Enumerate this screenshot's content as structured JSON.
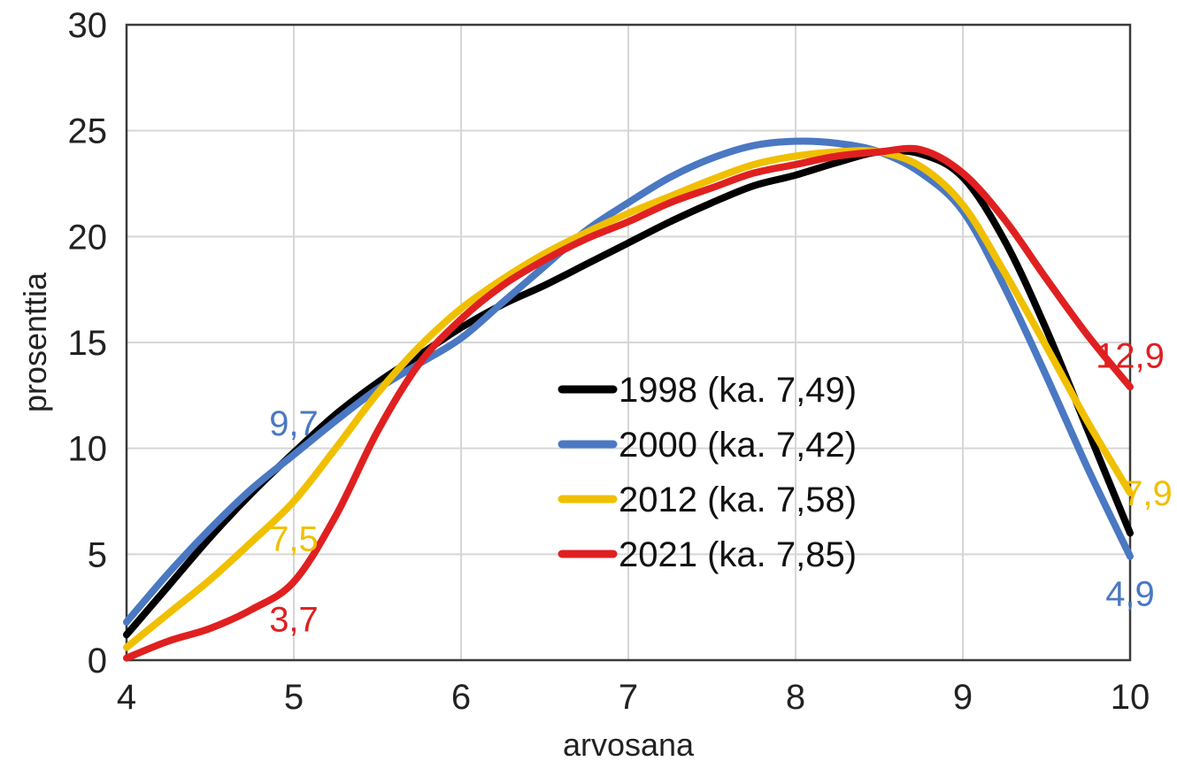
{
  "chart_data": {
    "type": "line",
    "xlabel": "arvosana",
    "ylabel": "prosenttia",
    "xlim": [
      4,
      10
    ],
    "ylim": [
      0,
      30
    ],
    "x_ticks": [
      4,
      5,
      6,
      7,
      8,
      9,
      10
    ],
    "y_ticks": [
      0,
      5,
      10,
      15,
      20,
      25,
      30
    ],
    "grid": true,
    "legend_position": "center-right",
    "series": [
      {
        "name": "1998 (ka. 7,49)",
        "color": "#000000",
        "points": [
          [
            4.0,
            1.2
          ],
          [
            4.25,
            3.5
          ],
          [
            4.5,
            5.8
          ],
          [
            4.75,
            7.9
          ],
          [
            5.0,
            9.8
          ],
          [
            5.25,
            11.6
          ],
          [
            5.5,
            13.1
          ],
          [
            5.75,
            14.4
          ],
          [
            6.0,
            15.7
          ],
          [
            6.25,
            16.8
          ],
          [
            6.5,
            17.7
          ],
          [
            6.75,
            18.7
          ],
          [
            7.0,
            19.7
          ],
          [
            7.25,
            20.7
          ],
          [
            7.5,
            21.6
          ],
          [
            7.75,
            22.4
          ],
          [
            8.0,
            22.9
          ],
          [
            8.25,
            23.5
          ],
          [
            8.5,
            24.0
          ],
          [
            8.75,
            23.9
          ],
          [
            9.0,
            22.8
          ],
          [
            9.25,
            19.8
          ],
          [
            9.5,
            15.6
          ],
          [
            9.75,
            10.8
          ],
          [
            10.0,
            6.0
          ]
        ]
      },
      {
        "name": "2000 (ka. 7,42)",
        "color": "#4a78c2",
        "label_points": [
          [
            5.0,
            9.7,
            "9,7",
            "above"
          ],
          [
            10.0,
            4.9,
            "4,9",
            "below"
          ]
        ],
        "points": [
          [
            4.0,
            1.8
          ],
          [
            4.25,
            4.1
          ],
          [
            4.5,
            6.2
          ],
          [
            4.75,
            8.1
          ],
          [
            5.0,
            9.7
          ],
          [
            5.25,
            11.3
          ],
          [
            5.5,
            12.8
          ],
          [
            5.75,
            14.0
          ],
          [
            6.0,
            15.2
          ],
          [
            6.25,
            16.9
          ],
          [
            6.5,
            18.6
          ],
          [
            6.75,
            20.3
          ],
          [
            7.0,
            21.6
          ],
          [
            7.25,
            22.8
          ],
          [
            7.5,
            23.7
          ],
          [
            7.75,
            24.3
          ],
          [
            8.0,
            24.5
          ],
          [
            8.25,
            24.4
          ],
          [
            8.5,
            24.0
          ],
          [
            8.75,
            23.0
          ],
          [
            9.0,
            21.2
          ],
          [
            9.25,
            17.6
          ],
          [
            9.5,
            13.4
          ],
          [
            9.75,
            9.0
          ],
          [
            10.0,
            4.9
          ]
        ]
      },
      {
        "name": "2012 (ka. 7,58)",
        "color": "#f0c000",
        "label_points": [
          [
            5.0,
            7.5,
            "7,5",
            "below"
          ],
          [
            10.0,
            7.9,
            "7,9",
            "right"
          ]
        ],
        "points": [
          [
            4.0,
            0.6
          ],
          [
            4.25,
            2.2
          ],
          [
            4.5,
            3.8
          ],
          [
            4.75,
            5.6
          ],
          [
            5.0,
            7.5
          ],
          [
            5.25,
            10.0
          ],
          [
            5.5,
            12.6
          ],
          [
            5.75,
            14.8
          ],
          [
            6.0,
            16.6
          ],
          [
            6.25,
            18.0
          ],
          [
            6.5,
            19.2
          ],
          [
            6.75,
            20.2
          ],
          [
            7.0,
            21.1
          ],
          [
            7.25,
            21.9
          ],
          [
            7.5,
            22.7
          ],
          [
            7.75,
            23.4
          ],
          [
            8.0,
            23.8
          ],
          [
            8.25,
            24.0
          ],
          [
            8.5,
            24.0
          ],
          [
            8.75,
            23.3
          ],
          [
            9.0,
            21.5
          ],
          [
            9.25,
            18.3
          ],
          [
            9.5,
            14.8
          ],
          [
            9.75,
            11.2
          ],
          [
            10.0,
            7.9
          ]
        ]
      },
      {
        "name": "2021 (ka. 7,85)",
        "color": "#e02020",
        "label_points": [
          [
            5.0,
            3.7,
            "3,7",
            "below"
          ],
          [
            10.0,
            12.9,
            "12,9",
            "above"
          ]
        ],
        "points": [
          [
            4.0,
            0.1
          ],
          [
            4.25,
            0.9
          ],
          [
            4.5,
            1.5
          ],
          [
            4.75,
            2.4
          ],
          [
            5.0,
            3.7
          ],
          [
            5.25,
            6.8
          ],
          [
            5.5,
            10.8
          ],
          [
            5.75,
            14.0
          ],
          [
            6.0,
            16.1
          ],
          [
            6.25,
            17.7
          ],
          [
            6.5,
            18.9
          ],
          [
            6.75,
            19.9
          ],
          [
            7.0,
            20.7
          ],
          [
            7.25,
            21.6
          ],
          [
            7.5,
            22.3
          ],
          [
            7.75,
            23.0
          ],
          [
            8.0,
            23.4
          ],
          [
            8.25,
            23.8
          ],
          [
            8.5,
            24.0
          ],
          [
            8.75,
            24.1
          ],
          [
            9.0,
            23.0
          ],
          [
            9.25,
            20.8
          ],
          [
            9.5,
            18.0
          ],
          [
            9.75,
            15.3
          ],
          [
            10.0,
            12.9
          ]
        ]
      }
    ]
  }
}
